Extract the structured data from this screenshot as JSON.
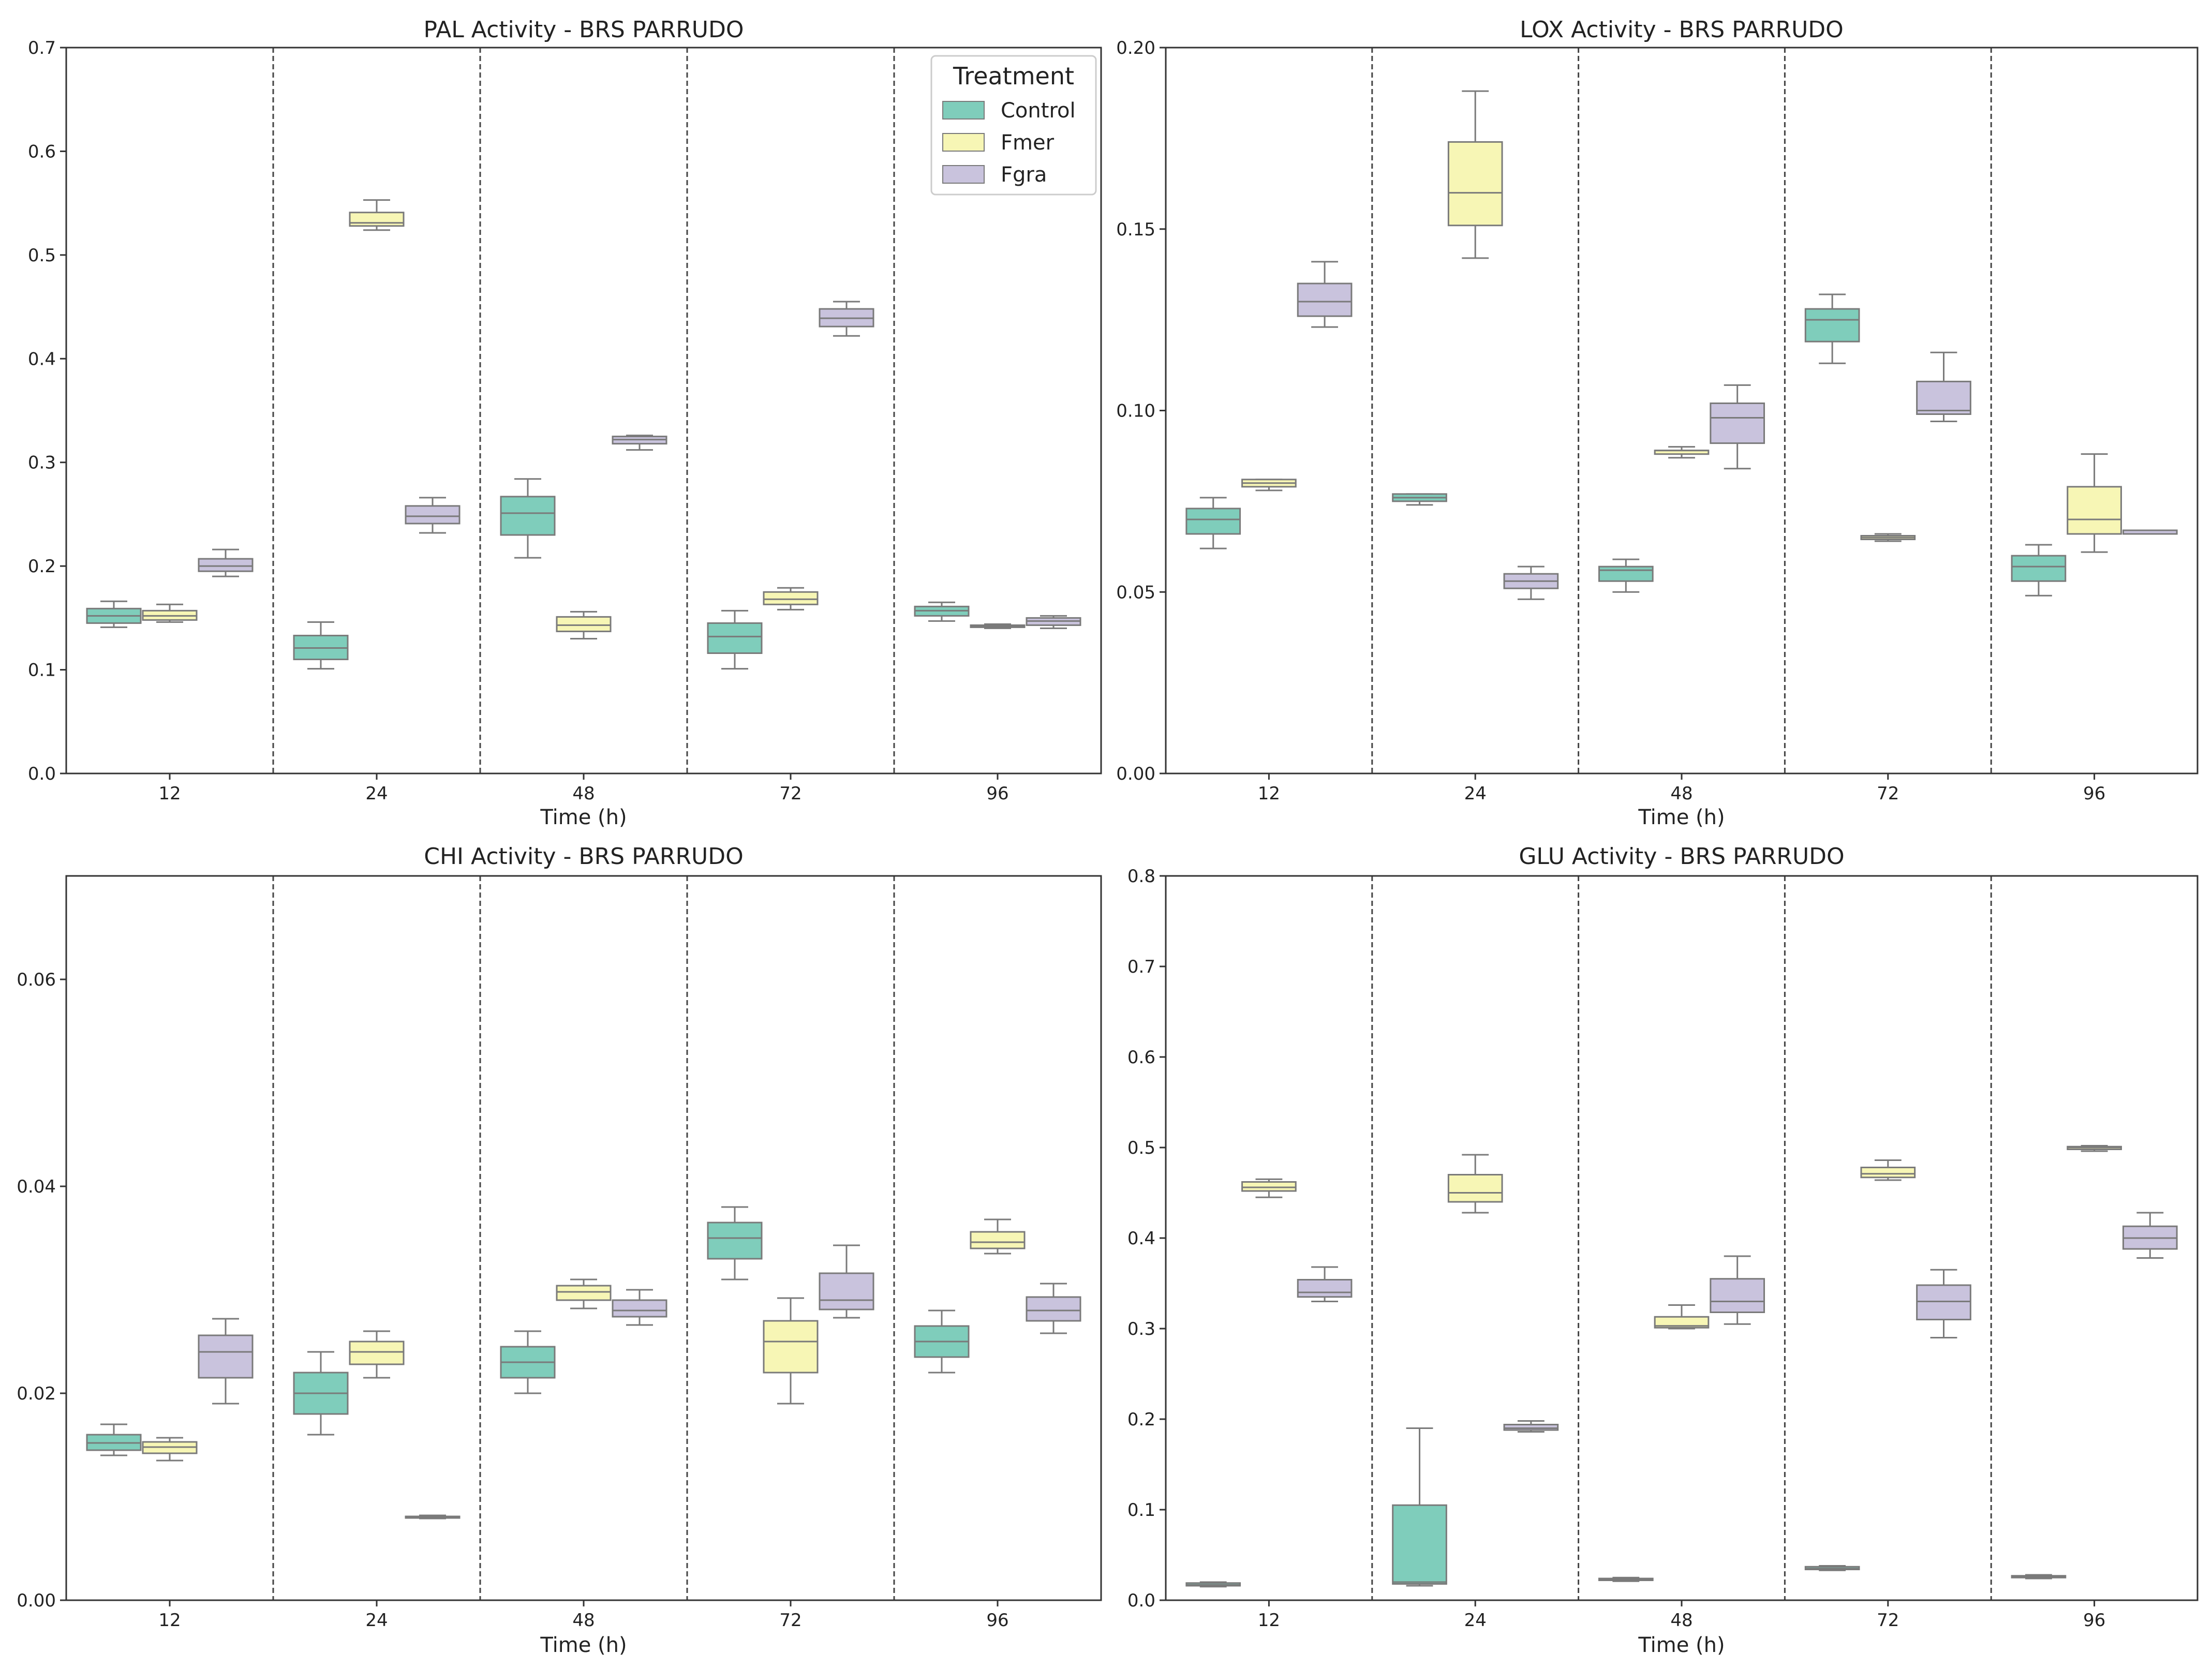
{
  "colors": {
    "Control": "#7fcdbb",
    "Fmer": "#f7f6b5",
    "Fgra": "#c9c3dd",
    "edge": "#7a7a7a",
    "axis": "#333333"
  },
  "legend": {
    "title": "Treatment",
    "entries": [
      "Control",
      "Fmer",
      "Fgra"
    ],
    "placement": "top-right"
  },
  "chart_data": [
    {
      "type": "box",
      "title": "PAL Activity - BRS PARRUDO",
      "xlabel": "Time (h)",
      "ylabel": "",
      "categories": [
        "12",
        "24",
        "48",
        "72",
        "96"
      ],
      "ylim": [
        0,
        0.7
      ],
      "yticks": [
        0.0,
        0.1,
        0.2,
        0.3,
        0.4,
        0.5,
        0.6,
        0.7
      ],
      "ytick_labels": [
        "0.0",
        "0.1",
        "0.2",
        "0.3",
        "0.4",
        "0.5",
        "0.6",
        "0.7"
      ],
      "series": [
        {
          "name": "Control",
          "boxes": [
            {
              "min": 0.141,
              "q1": 0.145,
              "median": 0.152,
              "q3": 0.159,
              "max": 0.166
            },
            {
              "min": 0.101,
              "q1": 0.11,
              "median": 0.121,
              "q3": 0.133,
              "max": 0.146
            },
            {
              "min": 0.208,
              "q1": 0.23,
              "median": 0.251,
              "q3": 0.267,
              "max": 0.284
            },
            {
              "min": 0.101,
              "q1": 0.116,
              "median": 0.132,
              "q3": 0.145,
              "max": 0.157
            },
            {
              "min": 0.147,
              "q1": 0.152,
              "median": 0.157,
              "q3": 0.161,
              "max": 0.165
            }
          ]
        },
        {
          "name": "Fmer",
          "boxes": [
            {
              "min": 0.146,
              "q1": 0.148,
              "median": 0.152,
              "q3": 0.157,
              "max": 0.163
            },
            {
              "min": 0.524,
              "q1": 0.528,
              "median": 0.531,
              "q3": 0.541,
              "max": 0.553
            },
            {
              "min": 0.13,
              "q1": 0.137,
              "median": 0.143,
              "q3": 0.151,
              "max": 0.156
            },
            {
              "min": 0.158,
              "q1": 0.163,
              "median": 0.168,
              "q3": 0.175,
              "max": 0.179
            },
            {
              "min": 0.14,
              "q1": 0.141,
              "median": 0.142,
              "q3": 0.143,
              "max": 0.144
            }
          ]
        },
        {
          "name": "Fgra",
          "boxes": [
            {
              "min": 0.19,
              "q1": 0.195,
              "median": 0.2,
              "q3": 0.207,
              "max": 0.216
            },
            {
              "min": 0.232,
              "q1": 0.241,
              "median": 0.248,
              "q3": 0.258,
              "max": 0.266
            },
            {
              "min": 0.312,
              "q1": 0.318,
              "median": 0.322,
              "q3": 0.325,
              "max": 0.326
            },
            {
              "min": 0.422,
              "q1": 0.431,
              "median": 0.439,
              "q3": 0.448,
              "max": 0.455
            },
            {
              "min": 0.14,
              "q1": 0.143,
              "median": 0.147,
              "q3": 0.15,
              "max": 0.152
            }
          ]
        }
      ]
    },
    {
      "type": "box",
      "title": "LOX Activity - BRS PARRUDO",
      "xlabel": "Time (h)",
      "ylabel": "",
      "categories": [
        "12",
        "24",
        "48",
        "72",
        "96"
      ],
      "ylim": [
        0,
        0.2
      ],
      "yticks": [
        0.0,
        0.05,
        0.1,
        0.15,
        0.2
      ],
      "ytick_labels": [
        "0.00",
        "0.05",
        "0.10",
        "0.15",
        "0.20"
      ],
      "series": [
        {
          "name": "Control",
          "boxes": [
            {
              "min": 0.062,
              "q1": 0.066,
              "median": 0.07,
              "q3": 0.073,
              "max": 0.076
            },
            {
              "min": 0.074,
              "q1": 0.075,
              "median": 0.076,
              "q3": 0.077,
              "max": 0.077
            },
            {
              "min": 0.05,
              "q1": 0.053,
              "median": 0.056,
              "q3": 0.057,
              "max": 0.059
            },
            {
              "min": 0.113,
              "q1": 0.119,
              "median": 0.125,
              "q3": 0.128,
              "max": 0.132
            },
            {
              "min": 0.049,
              "q1": 0.053,
              "median": 0.057,
              "q3": 0.06,
              "max": 0.063
            }
          ]
        },
        {
          "name": "Fmer",
          "boxes": [
            {
              "min": 0.078,
              "q1": 0.079,
              "median": 0.08,
              "q3": 0.081,
              "max": 0.081
            },
            {
              "min": 0.142,
              "q1": 0.151,
              "median": 0.16,
              "q3": 0.174,
              "max": 0.188
            },
            {
              "min": 0.087,
              "q1": 0.088,
              "median": 0.089,
              "q3": 0.089,
              "max": 0.09
            },
            {
              "min": 0.064,
              "q1": 0.0645,
              "median": 0.065,
              "q3": 0.0655,
              "max": 0.066
            },
            {
              "min": 0.061,
              "q1": 0.066,
              "median": 0.07,
              "q3": 0.079,
              "max": 0.088
            }
          ]
        },
        {
          "name": "Fgra",
          "boxes": [
            {
              "min": 0.123,
              "q1": 0.126,
              "median": 0.13,
              "q3": 0.135,
              "max": 0.141
            },
            {
              "min": 0.048,
              "q1": 0.051,
              "median": 0.053,
              "q3": 0.055,
              "max": 0.057
            },
            {
              "min": 0.084,
              "q1": 0.091,
              "median": 0.098,
              "q3": 0.102,
              "max": 0.107
            },
            {
              "min": 0.097,
              "q1": 0.099,
              "median": 0.1,
              "q3": 0.108,
              "max": 0.116
            },
            {
              "min": 0.066,
              "q1": 0.066,
              "median": 0.066,
              "q3": 0.067,
              "max": 0.067
            }
          ]
        }
      ]
    },
    {
      "type": "box",
      "title": "CHI Activity - BRS PARRUDO",
      "xlabel": "Time (h)",
      "ylabel": "",
      "categories": [
        "12",
        "24",
        "48",
        "72",
        "96"
      ],
      "ylim": [
        0,
        0.07
      ],
      "yticks": [
        0.0,
        0.02,
        0.04,
        0.06
      ],
      "ytick_labels": [
        "0.00",
        "0.02",
        "0.04",
        "0.06"
      ],
      "series": [
        {
          "name": "Control",
          "boxes": [
            {
              "min": 0.014,
              "q1": 0.0145,
              "median": 0.0152,
              "q3": 0.016,
              "max": 0.017
            },
            {
              "min": 0.016,
              "q1": 0.018,
              "median": 0.02,
              "q3": 0.022,
              "max": 0.024
            },
            {
              "min": 0.02,
              "q1": 0.0215,
              "median": 0.023,
              "q3": 0.0245,
              "max": 0.026
            },
            {
              "min": 0.031,
              "q1": 0.033,
              "median": 0.035,
              "q3": 0.0365,
              "max": 0.038
            },
            {
              "min": 0.022,
              "q1": 0.0235,
              "median": 0.025,
              "q3": 0.0265,
              "max": 0.028
            }
          ]
        },
        {
          "name": "Fmer",
          "boxes": [
            {
              "min": 0.0135,
              "q1": 0.0142,
              "median": 0.0148,
              "q3": 0.0153,
              "max": 0.0157
            },
            {
              "min": 0.0215,
              "q1": 0.0228,
              "median": 0.024,
              "q3": 0.025,
              "max": 0.026
            },
            {
              "min": 0.0282,
              "q1": 0.029,
              "median": 0.0298,
              "q3": 0.0304,
              "max": 0.031
            },
            {
              "min": 0.019,
              "q1": 0.022,
              "median": 0.025,
              "q3": 0.027,
              "max": 0.0292
            },
            {
              "min": 0.0335,
              "q1": 0.034,
              "median": 0.0346,
              "q3": 0.0356,
              "max": 0.0368
            }
          ]
        },
        {
          "name": "Fgra",
          "boxes": [
            {
              "min": 0.019,
              "q1": 0.0215,
              "median": 0.024,
              "q3": 0.0256,
              "max": 0.0272
            },
            {
              "min": 0.0079,
              "q1": 0.008,
              "median": 0.008,
              "q3": 0.0081,
              "max": 0.0082
            },
            {
              "min": 0.0266,
              "q1": 0.0274,
              "median": 0.028,
              "q3": 0.029,
              "max": 0.03
            },
            {
              "min": 0.0273,
              "q1": 0.0281,
              "median": 0.029,
              "q3": 0.0316,
              "max": 0.0343
            },
            {
              "min": 0.0258,
              "q1": 0.027,
              "median": 0.028,
              "q3": 0.0293,
              "max": 0.0306
            }
          ]
        }
      ]
    },
    {
      "type": "box",
      "title": "GLU Activity - BRS PARRUDO",
      "xlabel": "Time (h)",
      "ylabel": "",
      "categories": [
        "12",
        "24",
        "48",
        "72",
        "96"
      ],
      "ylim": [
        0,
        0.8
      ],
      "yticks": [
        0.0,
        0.1,
        0.2,
        0.3,
        0.4,
        0.5,
        0.6,
        0.7,
        0.8
      ],
      "ytick_labels": [
        "0.0",
        "0.1",
        "0.2",
        "0.3",
        "0.4",
        "0.5",
        "0.6",
        "0.7",
        "0.8"
      ],
      "series": [
        {
          "name": "Control",
          "boxes": [
            {
              "min": 0.015,
              "q1": 0.016,
              "median": 0.017,
              "q3": 0.019,
              "max": 0.02
            },
            {
              "min": 0.016,
              "q1": 0.018,
              "median": 0.02,
              "q3": 0.105,
              "max": 0.19
            },
            {
              "min": 0.021,
              "q1": 0.022,
              "median": 0.023,
              "q3": 0.024,
              "max": 0.025
            },
            {
              "min": 0.033,
              "q1": 0.034,
              "median": 0.035,
              "q3": 0.037,
              "max": 0.038
            },
            {
              "min": 0.024,
              "q1": 0.025,
              "median": 0.026,
              "q3": 0.027,
              "max": 0.028
            }
          ]
        },
        {
          "name": "Fmer",
          "boxes": [
            {
              "min": 0.445,
              "q1": 0.452,
              "median": 0.456,
              "q3": 0.462,
              "max": 0.465
            },
            {
              "min": 0.428,
              "q1": 0.44,
              "median": 0.45,
              "q3": 0.47,
              "max": 0.492
            },
            {
              "min": 0.3,
              "q1": 0.301,
              "median": 0.303,
              "q3": 0.313,
              "max": 0.326
            },
            {
              "min": 0.464,
              "q1": 0.467,
              "median": 0.471,
              "q3": 0.478,
              "max": 0.486
            },
            {
              "min": 0.496,
              "q1": 0.498,
              "median": 0.5,
              "q3": 0.501,
              "max": 0.502
            }
          ]
        },
        {
          "name": "Fgra",
          "boxes": [
            {
              "min": 0.33,
              "q1": 0.335,
              "median": 0.34,
              "q3": 0.354,
              "max": 0.368
            },
            {
              "min": 0.186,
              "q1": 0.188,
              "median": 0.19,
              "q3": 0.194,
              "max": 0.198
            },
            {
              "min": 0.305,
              "q1": 0.318,
              "median": 0.33,
              "q3": 0.355,
              "max": 0.38
            },
            {
              "min": 0.29,
              "q1": 0.31,
              "median": 0.33,
              "q3": 0.348,
              "max": 0.365
            },
            {
              "min": 0.378,
              "q1": 0.388,
              "median": 0.4,
              "q3": 0.413,
              "max": 0.428
            }
          ]
        }
      ]
    }
  ]
}
